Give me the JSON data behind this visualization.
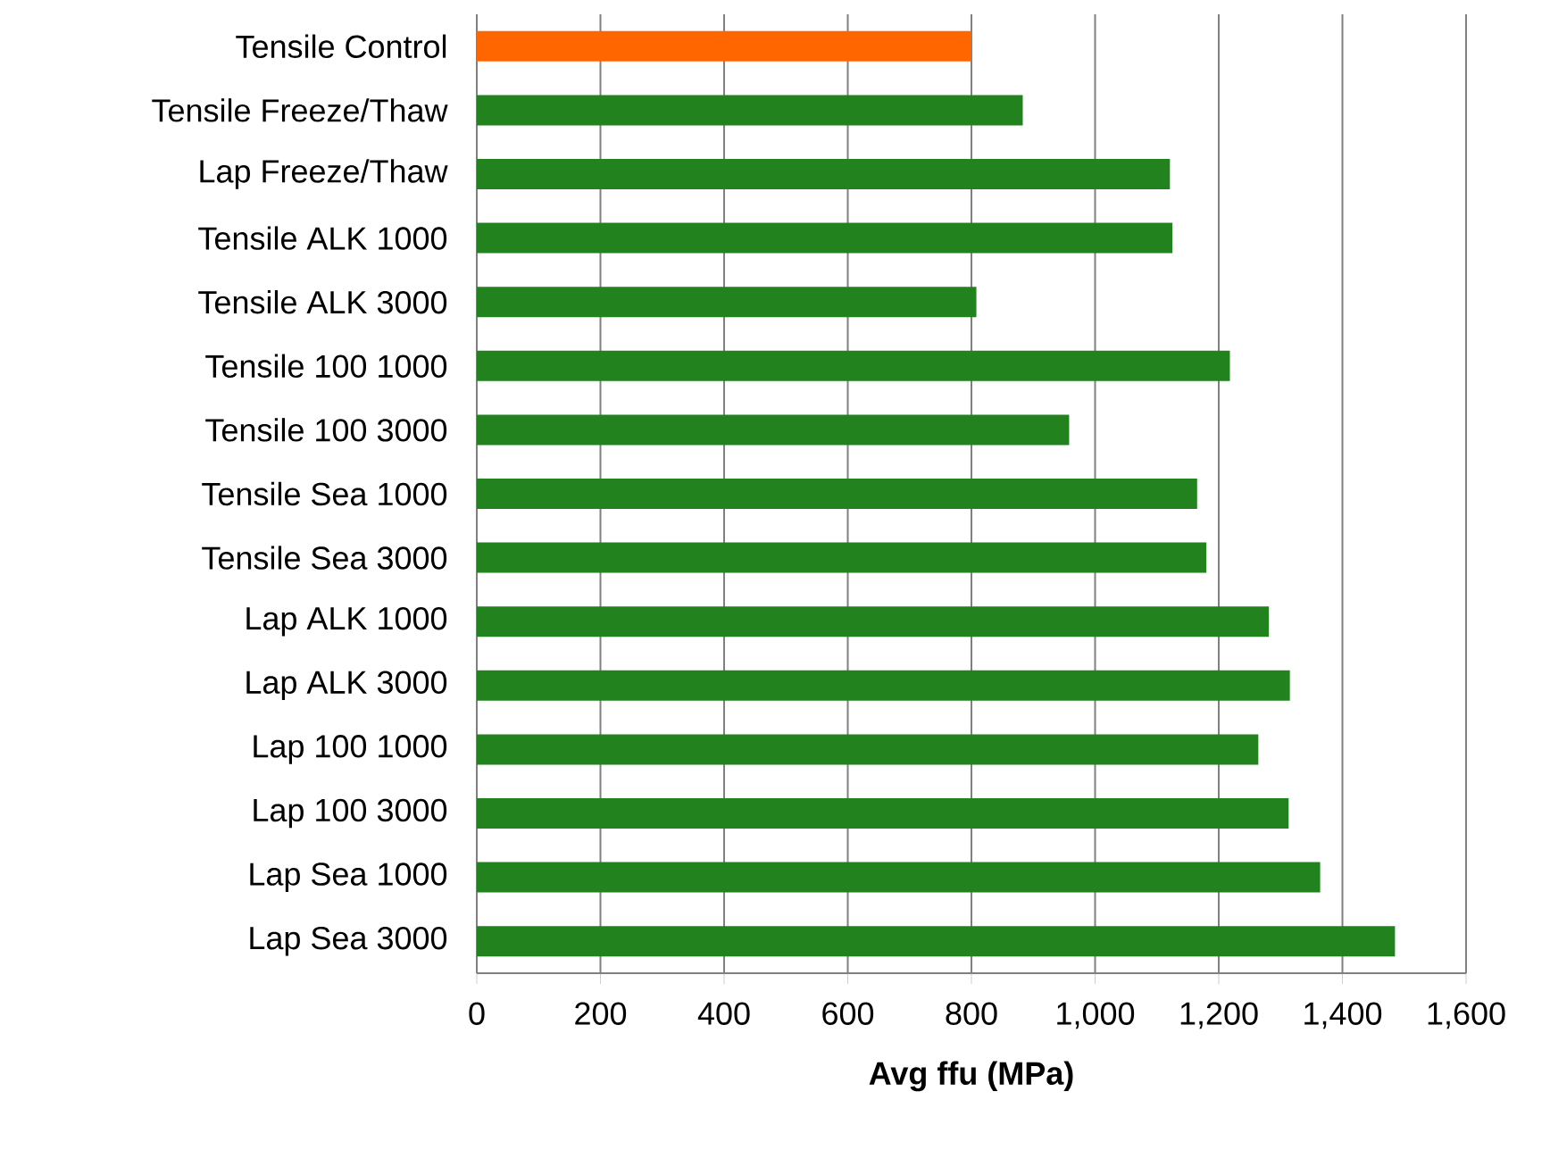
{
  "chart_data": {
    "type": "bar",
    "orientation": "horizontal",
    "categories": [
      "Tensile Control",
      "Tensile Freeze/Thaw",
      "Lap Freeze/Thaw",
      "Tensile ALK 1000",
      "Tensile ALK 3000",
      "Tensile 100 1000",
      "Tensile 100 3000",
      "Tensile Sea 1000",
      "Tensile Sea 3000",
      "Lap ALK 1000",
      "Lap ALK 3000",
      "Lap 100 1000",
      "Lap 100 3000",
      "Lap Sea 1000",
      "Lap Sea 3000"
    ],
    "values": [
      800,
      883,
      1121,
      1125,
      808,
      1218,
      958,
      1165,
      1180,
      1281,
      1315,
      1264,
      1313,
      1364,
      1485
    ],
    "colors": [
      "#ff6600",
      "#22821e",
      "#22821e",
      "#22821e",
      "#22821e",
      "#22821e",
      "#22821e",
      "#22821e",
      "#22821e",
      "#22821e",
      "#22821e",
      "#22821e",
      "#22821e",
      "#22821e",
      "#22821e"
    ],
    "xlabel": "Avg ffu (MPa)",
    "xlim": [
      0,
      1600
    ],
    "xticks": [
      0,
      200,
      400,
      600,
      800,
      {
        "value": 1000,
        "label": "1,000"
      },
      {
        "value": 1200,
        "label": "1,200"
      },
      {
        "value": 1400,
        "label": "1,400"
      },
      {
        "value": 1600,
        "label": "1,600"
      }
    ],
    "grid": "x"
  }
}
